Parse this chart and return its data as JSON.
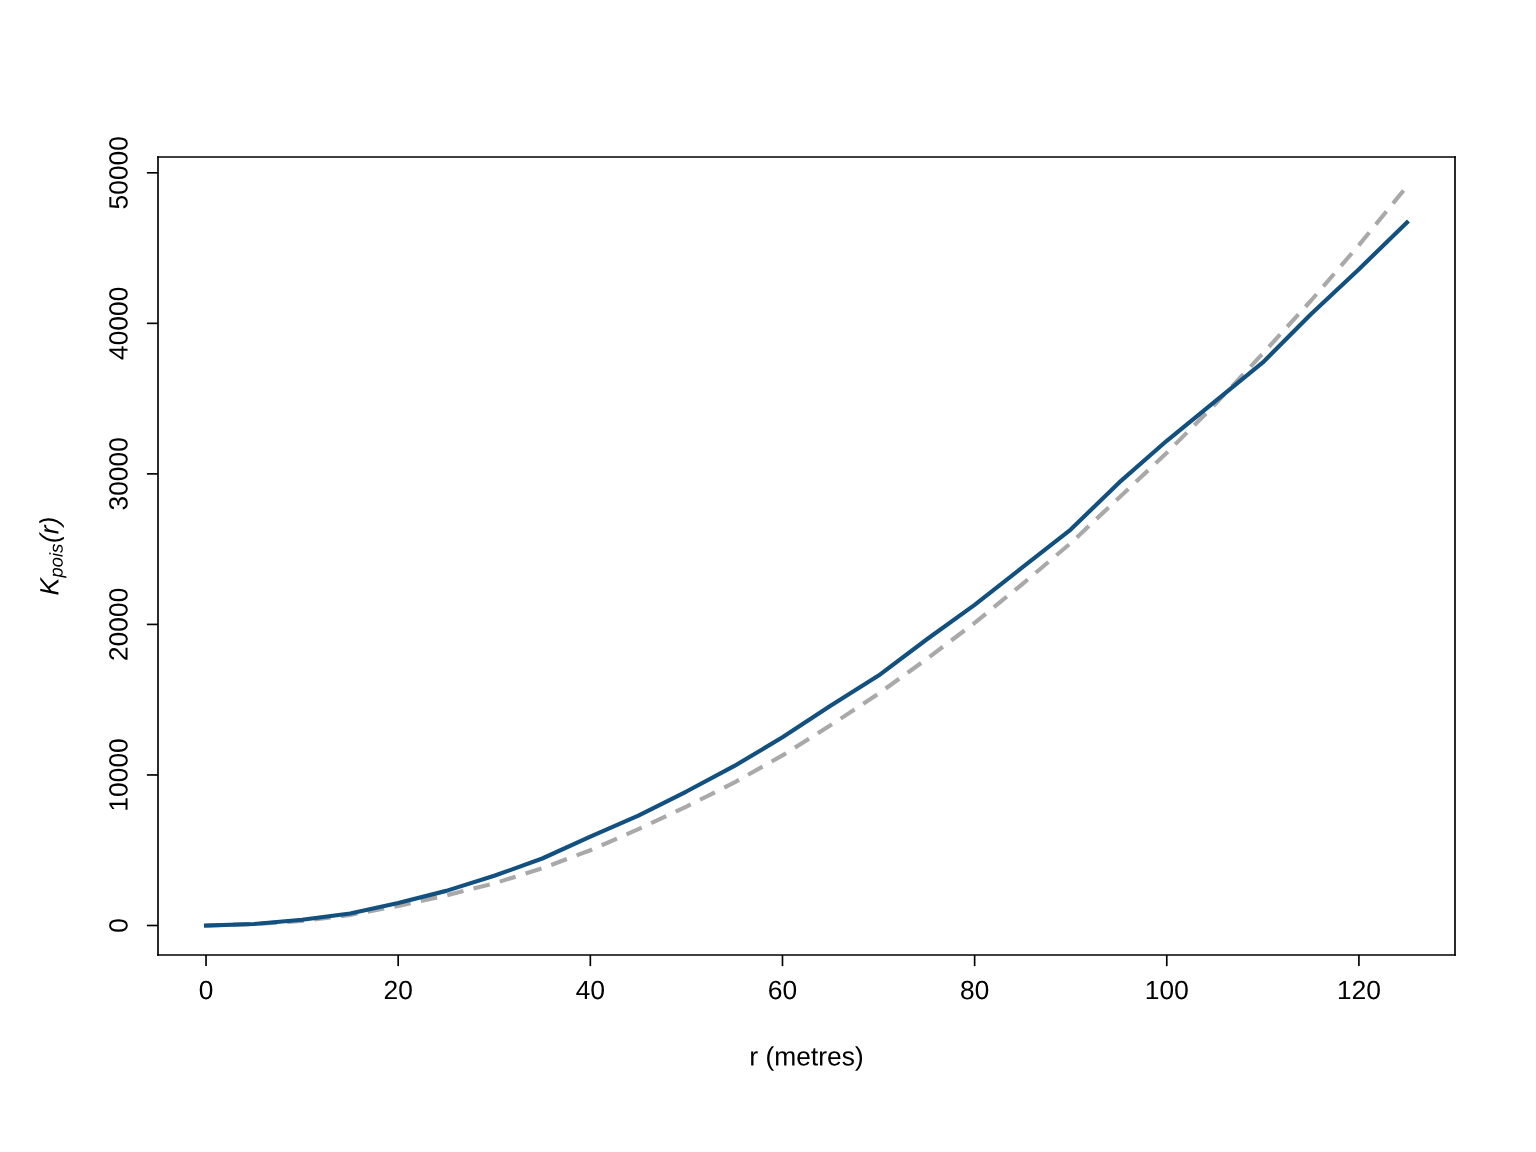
{
  "chart_data": {
    "type": "line",
    "xlabel": "r (metres)",
    "ylabel": "K$_{pois}$(r)",
    "xlim": [
      -5,
      130
    ],
    "ylim": [
      -1960,
      51050
    ],
    "xticks": [
      0,
      20,
      40,
      60,
      80,
      100,
      120
    ],
    "yticks": [
      0,
      10000,
      20000,
      30000,
      40000,
      50000
    ],
    "grid": false,
    "legend": false,
    "marker": "none",
    "series": [
      {
        "color": "#a9a9a9",
        "line_style": "dashed",
        "x": [
          0,
          5,
          10,
          15,
          20,
          25,
          30,
          35,
          40,
          45,
          50,
          55,
          60,
          65,
          70,
          75,
          80,
          85,
          90,
          95,
          100,
          105,
          110,
          115,
          120,
          125
        ],
        "values": [
          0,
          100,
          300,
          700,
          1300,
          2000,
          2800,
          3800,
          5000,
          6400,
          7900,
          9500,
          11300,
          13300,
          15400,
          17700,
          20100,
          22700,
          25400,
          28400,
          31400,
          34600,
          38000,
          41500,
          45200,
          49100
        ]
      },
      {
        "color": "#11507f",
        "line_style": "solid",
        "x": [
          0,
          5,
          10,
          15,
          20,
          25,
          30,
          35,
          40,
          45,
          50,
          55,
          60,
          65,
          70,
          75,
          80,
          85,
          90,
          95,
          100,
          105,
          110,
          115,
          120,
          125
        ],
        "values": [
          0,
          100,
          380,
          800,
          1500,
          2300,
          3300,
          4450,
          5900,
          7300,
          8900,
          10600,
          12500,
          14600,
          16600,
          19000,
          21300,
          23800,
          26300,
          29400,
          32200,
          34800,
          37400,
          40600,
          43600,
          46700
        ]
      }
    ]
  }
}
